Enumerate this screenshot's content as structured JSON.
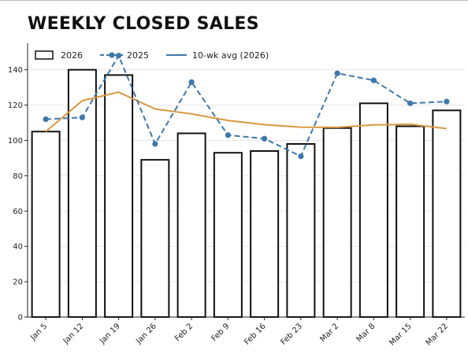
{
  "chart_data": {
    "type": "bar",
    "title": "WEEKLY CLOSED SALES",
    "xlabel": "",
    "ylabel": "",
    "categories": [
      "Jan 5",
      "Jan 12",
      "Jan 19",
      "Jan 26",
      "Feb 2",
      "Feb 9",
      "Feb 16",
      "Feb 23",
      "Mar 2",
      "Mar 8",
      "Mar 15",
      "Mar 22"
    ],
    "ylim": [
      0,
      155
    ],
    "yticks": [
      0,
      20,
      40,
      60,
      80,
      100,
      120,
      140
    ],
    "grid": true,
    "legend_position": "top-left",
    "series": [
      {
        "name": "2026",
        "kind": "bar",
        "values": [
          105,
          140,
          137,
          89,
          104,
          93,
          94,
          98,
          107,
          121,
          108,
          117
        ]
      },
      {
        "name": "2025",
        "kind": "dashed-line-markers",
        "values": [
          112,
          113,
          148,
          98,
          133,
          103,
          101,
          91,
          138,
          134,
          121,
          122
        ]
      },
      {
        "name": "10-wk avg (2026)",
        "kind": "line",
        "values": [
          105,
          122.5,
          127.3,
          117.8,
          115.0,
          111.3,
          108.9,
          107.5,
          107.4,
          108.8,
          109.1,
          106.7
        ]
      }
    ],
    "colors": {
      "bar_fill": "#ffffff",
      "bar_edge": "#111111",
      "series_2025": "#3d78ab",
      "avg_line": "#d8973f",
      "legend_avg_line": "#3d78ab",
      "grid": "#e6e6e6",
      "axis": "#222222"
    }
  }
}
